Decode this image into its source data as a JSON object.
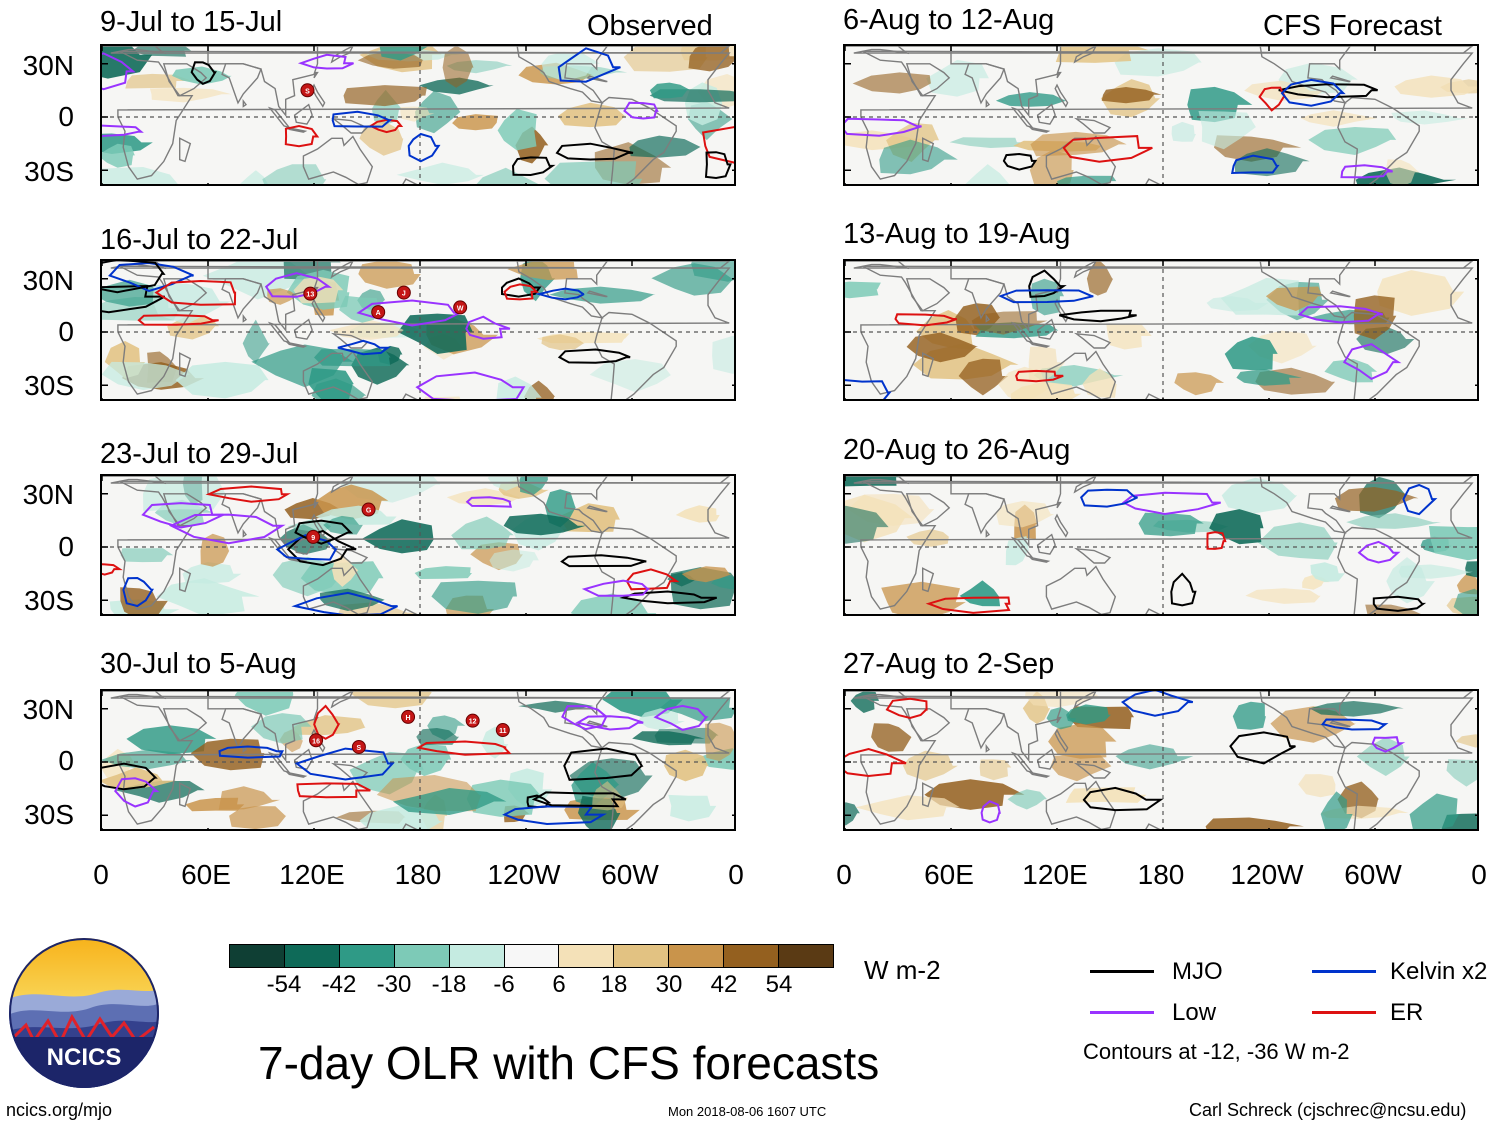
{
  "headers": {
    "left": "Observed",
    "right": "CFS Forecast"
  },
  "observed_panels": [
    {
      "title": "9-Jul to 15-Jul"
    },
    {
      "title": "16-Jul to 22-Jul"
    },
    {
      "title": "23-Jul to 29-Jul"
    },
    {
      "title": "30-Jul to 5-Aug"
    }
  ],
  "forecast_panels": [
    {
      "title": "6-Aug to 12-Aug"
    },
    {
      "title": "13-Aug to 19-Aug"
    },
    {
      "title": "20-Aug to 26-Aug"
    },
    {
      "title": "27-Aug to 2-Sep"
    }
  ],
  "lat_labels": [
    "30N",
    "0",
    "30S"
  ],
  "lon_labels": [
    "0",
    "60E",
    "120E",
    "180",
    "120W",
    "60W",
    "0"
  ],
  "colorbar": {
    "unit": "W m-2",
    "ticks": [
      "-54",
      "-42",
      "-30",
      "-18",
      "-6",
      "6",
      "18",
      "30",
      "42",
      "54"
    ],
    "colors": [
      "#0f3f34",
      "#0e6a58",
      "#2f9a86",
      "#7dcab7",
      "#c5ebe1",
      "#f7f7f7",
      "#f4e1b8",
      "#e2c282",
      "#c9944b",
      "#94601f",
      "#5a3a14"
    ]
  },
  "legend": {
    "items": [
      {
        "label": "MJO",
        "color": "#000000"
      },
      {
        "label": "Kelvin x2",
        "color": "#0033cc"
      },
      {
        "label": "Low",
        "color": "#9933ff"
      },
      {
        "label": "ER",
        "color": "#dd1111"
      }
    ],
    "note": "Contours at -12, -36 W m-2"
  },
  "logo": {
    "text": "NCICS"
  },
  "title": "7-day OLR with CFS forecasts",
  "footer": {
    "url": "ncics.org/mjo",
    "timestamp": "Mon 2018-08-06 1607 UTC",
    "credit": "Carl Schreck (cjschrec@ncsu.edu)"
  },
  "storm_markers": [
    [
      "S"
    ],
    [
      "13",
      "A",
      "J",
      "W"
    ],
    [
      "9",
      "G"
    ],
    [
      "16",
      "S",
      "H",
      "12",
      "11"
    ]
  ]
}
